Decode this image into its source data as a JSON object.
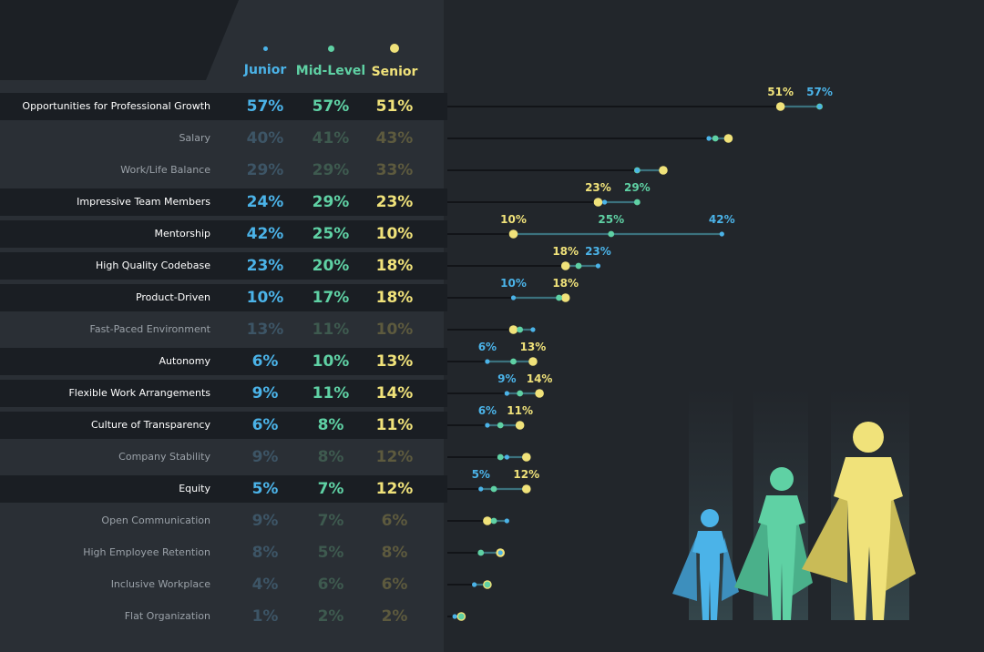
{
  "chart_data": {
    "type": "dot-plot",
    "legend": [
      {
        "name": "Junior",
        "color": "#4bb3e8"
      },
      {
        "name": "Mid-Level",
        "color": "#5fd1a4"
      },
      {
        "name": "Senior",
        "color": "#f0e27a"
      }
    ],
    "rows": [
      {
        "category": "Opportunities for Professional Growth",
        "junior": 57,
        "mid": 57,
        "senior": 51,
        "highlight": true,
        "labels": [
          "51%",
          "57%"
        ]
      },
      {
        "category": "Salary",
        "junior": 40,
        "mid": 41,
        "senior": 43,
        "highlight": false,
        "labels": []
      },
      {
        "category": "Work/Life Balance",
        "junior": 29,
        "mid": 29,
        "senior": 33,
        "highlight": false,
        "labels": []
      },
      {
        "category": "Impressive Team Members",
        "junior": 24,
        "mid": 29,
        "senior": 23,
        "highlight": true,
        "labels": [
          "23%",
          "29%"
        ]
      },
      {
        "category": "Mentorship",
        "junior": 42,
        "mid": 25,
        "senior": 10,
        "highlight": true,
        "labels": [
          "10%",
          "25%",
          "42%"
        ]
      },
      {
        "category": "High Quality Codebase",
        "junior": 23,
        "mid": 20,
        "senior": 18,
        "highlight": true,
        "labels": [
          "18%",
          "23%"
        ]
      },
      {
        "category": "Product-Driven",
        "junior": 10,
        "mid": 17,
        "senior": 18,
        "highlight": true,
        "labels": [
          "10%",
          "18%"
        ]
      },
      {
        "category": "Fast-Paced Environment",
        "junior": 13,
        "mid": 11,
        "senior": 10,
        "highlight": false,
        "labels": []
      },
      {
        "category": "Autonomy",
        "junior": 6,
        "mid": 10,
        "senior": 13,
        "highlight": true,
        "labels": [
          "6%",
          "13%"
        ]
      },
      {
        "category": "Flexible Work Arrangements",
        "junior": 9,
        "mid": 11,
        "senior": 14,
        "highlight": true,
        "labels": [
          "9%",
          "14%"
        ]
      },
      {
        "category": "Culture of Transparency",
        "junior": 6,
        "mid": 8,
        "senior": 11,
        "highlight": true,
        "labels": [
          "6%",
          "11%"
        ]
      },
      {
        "category": "Company Stability",
        "junior": 9,
        "mid": 8,
        "senior": 12,
        "highlight": false,
        "labels": []
      },
      {
        "category": "Equity",
        "junior": 5,
        "mid": 7,
        "senior": 12,
        "highlight": true,
        "labels": [
          "5%",
          "12%"
        ]
      },
      {
        "category": "Open Communication",
        "junior": 9,
        "mid": 7,
        "senior": 6,
        "highlight": false,
        "labels": []
      },
      {
        "category": "High Employee Retention",
        "junior": 8,
        "mid": 5,
        "senior": 8,
        "highlight": false,
        "labels": []
      },
      {
        "category": "Inclusive Workplace",
        "junior": 4,
        "mid": 6,
        "senior": 6,
        "highlight": false,
        "labels": []
      },
      {
        "category": "Flat Organization",
        "junior": 1,
        "mid": 2,
        "senior": 2,
        "highlight": false,
        "labels": []
      }
    ]
  }
}
